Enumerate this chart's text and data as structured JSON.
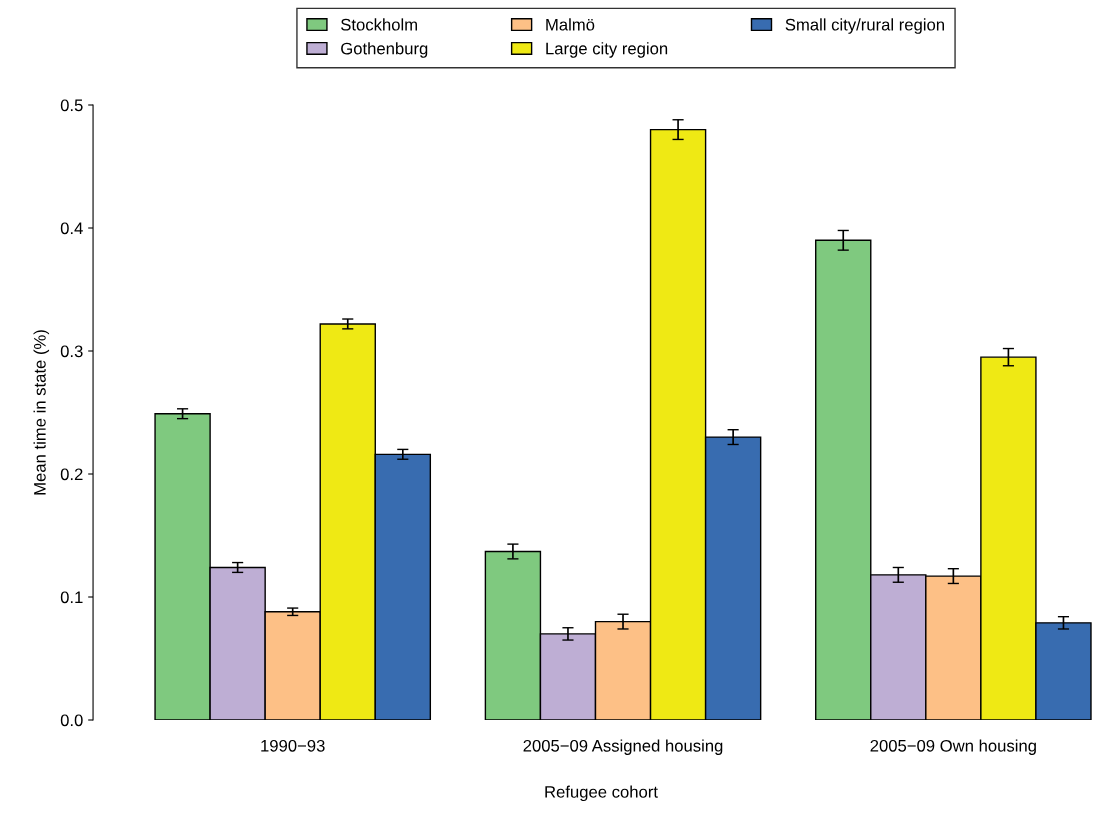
{
  "chart_data": {
    "type": "bar",
    "xlabel": "Refugee cohort",
    "ylabel": "Mean time in state (%)",
    "categories": [
      "1990−93",
      "2005−09 Assigned housing",
      "2005−09 Own housing"
    ],
    "series": [
      {
        "name": "Stockholm",
        "color": "#7fc97f",
        "values": [
          0.249,
          0.137,
          0.39
        ],
        "errors": [
          0.004,
          0.006,
          0.008
        ]
      },
      {
        "name": "Gothenburg",
        "color": "#beaed4",
        "values": [
          0.124,
          0.07,
          0.118
        ],
        "errors": [
          0.004,
          0.005,
          0.006
        ]
      },
      {
        "name": "Malmö",
        "color": "#fdc086",
        "values": [
          0.088,
          0.08,
          0.117
        ],
        "errors": [
          0.003,
          0.006,
          0.006
        ]
      },
      {
        "name": "Large city region",
        "color": "#efe914",
        "values": [
          0.322,
          0.48,
          0.295
        ],
        "errors": [
          0.004,
          0.008,
          0.007
        ]
      },
      {
        "name": "Small city/rural region",
        "color": "#386cb0",
        "values": [
          0.216,
          0.23,
          0.079
        ],
        "errors": [
          0.004,
          0.006,
          0.005
        ]
      }
    ],
    "ylim": [
      0,
      0.5
    ],
    "yticks": [
      {
        "value": 0,
        "label": "0.0"
      },
      0.1,
      0.2,
      0.3,
      0.4,
      0.5
    ],
    "grid": false,
    "legend": "top"
  }
}
